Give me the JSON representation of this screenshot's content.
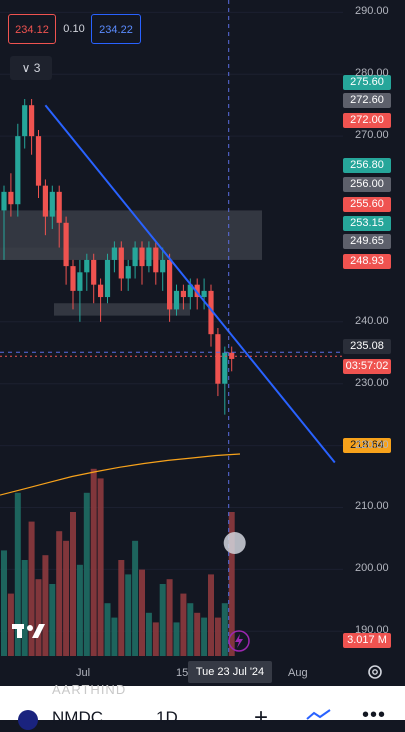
{
  "header": {
    "sell_price": "234.12",
    "spread": "0.10",
    "buy_price": "234.22",
    "collapse_label": "3"
  },
  "price_labels": [
    {
      "value": "275.60",
      "color": "#26a69a"
    },
    {
      "value": "272.60",
      "color": "#5d606b"
    },
    {
      "value": "272.00",
      "color": "#ef5350"
    },
    {
      "value": "256.80",
      "color": "#26a69a"
    },
    {
      "value": "256.00",
      "color": "#5d606b"
    },
    {
      "value": "255.60",
      "color": "#ef5350"
    },
    {
      "value": "253.15",
      "color": "#26a69a"
    },
    {
      "value": "249.65",
      "color": "#5d606b"
    },
    {
      "value": "248.93",
      "color": "#ef5350"
    },
    {
      "value": "235.08",
      "color": "#2a2e39"
    },
    {
      "value": "03:57:02",
      "color": "#ef5350"
    },
    {
      "value": "218.64",
      "color": "#f7a21b"
    },
    {
      "value": "3.017 M",
      "color": "#ef5350"
    }
  ],
  "y_axis": [
    "290.00",
    "280.00",
    "270.00",
    "240.00",
    "230.00",
    "220.00",
    "210.00",
    "200.00",
    "190.00"
  ],
  "x_axis": {
    "jul": "Jul",
    "d15": "15",
    "current": "Tue 23 Jul '24",
    "aug": "Aug"
  },
  "bottom": {
    "symbol": "NMDC",
    "interval": "1D",
    "watermark": "AARTHIND"
  },
  "icons": {
    "logo": "tradingview-logo-icon",
    "settings": "gear-icon",
    "bolt": "lightning-icon",
    "add": "plus-icon",
    "indicators": "indicators-icon",
    "more": "more-icon"
  },
  "chart_data": {
    "type": "candlestick",
    "title": "",
    "series": [
      {
        "name": "price",
        "candles": [
          [
            258,
            261,
            250,
            262
          ],
          [
            261,
            259,
            257,
            264
          ],
          [
            259,
            270,
            257,
            272
          ],
          [
            270,
            275,
            268,
            276
          ],
          [
            275,
            270,
            267,
            276
          ],
          [
            270,
            262,
            260,
            271
          ],
          [
            262,
            257,
            254,
            263
          ],
          [
            257,
            261,
            255,
            262
          ],
          [
            261,
            256,
            252,
            262
          ],
          [
            256,
            249,
            246,
            257
          ],
          [
            249,
            245,
            242,
            250
          ],
          [
            245,
            248,
            240,
            250
          ],
          [
            248,
            250,
            245,
            251
          ],
          [
            250,
            246,
            243,
            251
          ],
          [
            246,
            244,
            240,
            247
          ],
          [
            244,
            250,
            243,
            251
          ],
          [
            250,
            252,
            248,
            253
          ],
          [
            252,
            247,
            245,
            253
          ],
          [
            247,
            249,
            245,
            250
          ],
          [
            249,
            252,
            247,
            253
          ],
          [
            252,
            249,
            246,
            253
          ],
          [
            249,
            252,
            248,
            253
          ],
          [
            252,
            248,
            246,
            253
          ],
          [
            248,
            250,
            245,
            252
          ],
          [
            250,
            242,
            240,
            251
          ],
          [
            242,
            245,
            241,
            246
          ],
          [
            245,
            244,
            242,
            246
          ],
          [
            244,
            246,
            242,
            247
          ],
          [
            246,
            244,
            242,
            247
          ],
          [
            244,
            245,
            242,
            247
          ],
          [
            245,
            238,
            236,
            246
          ],
          [
            238,
            230,
            228,
            239
          ],
          [
            230,
            235,
            225,
            236
          ],
          [
            235,
            234,
            232,
            236
          ]
        ]
      },
      {
        "name": "volume",
        "values": [
          2.2,
          1.3,
          3.4,
          2.0,
          2.8,
          1.6,
          2.1,
          1.5,
          2.6,
          2.4,
          3.0,
          1.9,
          3.4,
          3.9,
          3.7,
          1.1,
          0.8,
          2.0,
          1.7,
          2.4,
          1.8,
          0.9,
          0.7,
          1.5,
          1.6,
          0.7,
          1.3,
          1.1,
          0.9,
          0.8,
          1.7,
          0.8,
          1.1,
          3.0
        ]
      },
      {
        "name": "moving_average",
        "values": [
          212.0,
          213.0,
          214.0,
          215.0,
          215.8,
          216.5,
          217.1,
          217.6,
          218.0,
          218.4,
          218.64
        ]
      }
    ],
    "ylim": [
      186,
      292
    ],
    "trendline": [
      [
        275,
        6
      ],
      [
        226,
        32
      ]
    ],
    "current_price": 235.08
  }
}
